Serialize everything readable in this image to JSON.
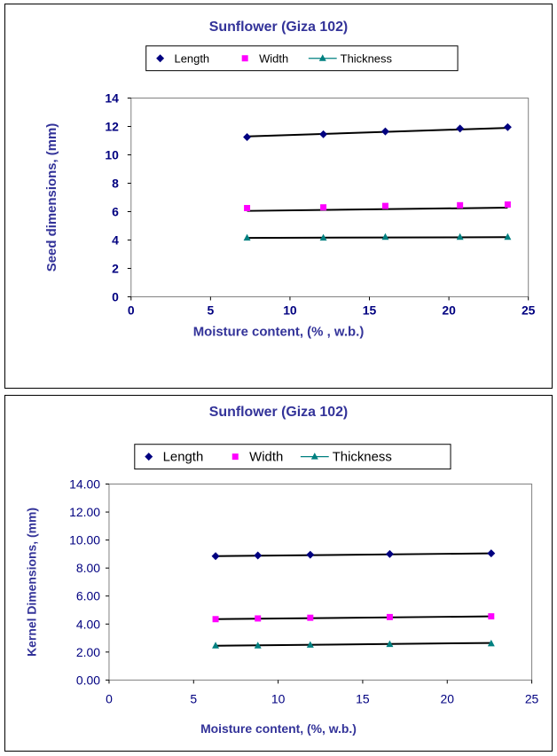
{
  "chart_data": [
    {
      "type": "line",
      "title": "Sunflower (Giza 102)",
      "xlabel": "Moisture content, (% , w.b.)",
      "ylabel": "Seed dimensions, (mm)",
      "xlim": [
        0,
        25
      ],
      "ylim": [
        0,
        14
      ],
      "x_ticks": [
        "0",
        "5",
        "10",
        "15",
        "20",
        "25"
      ],
      "y_ticks": [
        "0",
        "2",
        "4",
        "6",
        "8",
        "10",
        "12",
        "14"
      ],
      "grid": false,
      "legend_position": "top",
      "x": [
        7.3,
        12.1,
        16.0,
        20.7,
        23.7
      ],
      "series": [
        {
          "name": "Length",
          "marker": "diamond",
          "color": "#000080",
          "values": [
            11.25,
            11.45,
            11.65,
            11.85,
            11.95
          ],
          "trend": [
            11.3,
            11.9
          ]
        },
        {
          "name": "Width",
          "marker": "square",
          "color": "#ff00ff",
          "values": [
            6.25,
            6.3,
            6.4,
            6.45,
            6.5
          ],
          "trend": [
            6.05,
            6.28
          ]
        },
        {
          "name": "Thickness",
          "marker": "triangle",
          "color": "#008080",
          "values": [
            4.15,
            4.15,
            4.2,
            4.2,
            4.2
          ],
          "trend": [
            4.15,
            4.2
          ]
        }
      ]
    },
    {
      "type": "line",
      "title": "Sunflower (Giza 102)",
      "xlabel": "Moisture content, (%, w.b.)",
      "ylabel": "Kernel Dimensions, (mm)",
      "xlim": [
        0,
        25
      ],
      "ylim": [
        0,
        14
      ],
      "x_ticks": [
        "0",
        "5",
        "10",
        "15",
        "20",
        "25"
      ],
      "y_ticks": [
        "0.00",
        "2.00",
        "4.00",
        "6.00",
        "8.00",
        "10.00",
        "12.00",
        "14.00"
      ],
      "grid": false,
      "legend_position": "top",
      "x": [
        6.3,
        8.8,
        11.9,
        16.6,
        22.6
      ],
      "series": [
        {
          "name": "Length",
          "marker": "diamond",
          "color": "#000080",
          "values": [
            8.85,
            8.9,
            8.95,
            9.0,
            9.05
          ],
          "trend": [
            8.85,
            9.05
          ]
        },
        {
          "name": "Width",
          "marker": "square",
          "color": "#ff00ff",
          "values": [
            4.35,
            4.4,
            4.45,
            4.5,
            4.55
          ],
          "trend": [
            4.35,
            4.55
          ]
        },
        {
          "name": "Thickness",
          "marker": "triangle",
          "color": "#008080",
          "values": [
            2.45,
            2.45,
            2.5,
            2.55,
            2.6
          ],
          "trend": [
            2.45,
            2.65
          ]
        }
      ]
    }
  ]
}
